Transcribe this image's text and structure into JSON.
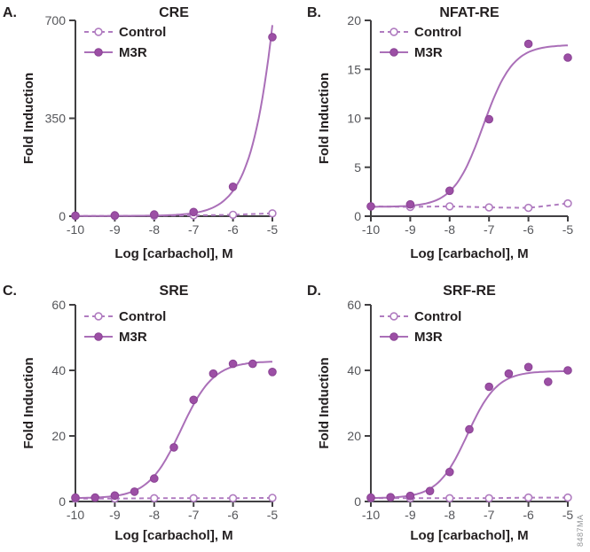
{
  "figure": {
    "watermark": "8487MA",
    "colors": {
      "curve_line": "#aa6fb8",
      "marker_fill": "#9c4fa5",
      "marker_edge": "#8a4394",
      "control_line": "#b07cc0",
      "open_marker_fill": "#ffffff",
      "axis": "#414042",
      "tick_label": "#55565a",
      "text": "#231f20",
      "watermark_gray": "#929497"
    },
    "legend": {
      "control_label": "Control",
      "m3r_label": "M3R"
    }
  },
  "chart_data": [
    {
      "id": "cre",
      "letter": "A.",
      "title": "CRE",
      "type": "scatter",
      "xlabel": "Log [carbachol], M",
      "ylabel": "Fold Induction",
      "xlim": [
        -10,
        -5
      ],
      "xticks": [
        -10,
        -9,
        -8,
        -7,
        -6,
        -5
      ],
      "ylim": [
        0,
        700
      ],
      "yticks": [
        0,
        350,
        700
      ],
      "legend_position": "top-left",
      "grid": false,
      "series": [
        {
          "name": "Control",
          "style": "dashed-open",
          "x": [
            -10,
            -9,
            -8,
            -7,
            -6,
            -5
          ],
          "y": [
            1,
            1,
            2,
            3,
            5,
            10
          ]
        },
        {
          "name": "M3R",
          "style": "solid-filled",
          "x": [
            -10,
            -9,
            -8,
            -7,
            -6,
            -5
          ],
          "y": [
            2,
            3,
            6,
            15,
            105,
            640
          ],
          "fit": {
            "bottom": 1,
            "top": 4200,
            "logec50": -4.25,
            "hill": 0.95
          }
        }
      ]
    },
    {
      "id": "nfat-re",
      "letter": "B.",
      "title": "NFAT-RE",
      "type": "scatter",
      "xlabel": "Log [carbachol], M",
      "ylabel": "Fold Induction",
      "xlim": [
        -10,
        -5
      ],
      "xticks": [
        -10,
        -9,
        -8,
        -7,
        -6,
        -5
      ],
      "ylim": [
        0,
        20
      ],
      "yticks": [
        0,
        5,
        10,
        15,
        20
      ],
      "legend_position": "top-left",
      "grid": false,
      "series": [
        {
          "name": "Control",
          "style": "dashed-open",
          "x": [
            -10,
            -9,
            -8,
            -7,
            -6,
            -5
          ],
          "y": [
            1.0,
            0.95,
            1.0,
            0.9,
            0.85,
            1.3
          ]
        },
        {
          "name": "M3R",
          "style": "solid-filled",
          "x": [
            -10,
            -9,
            -8,
            -7,
            -6,
            -5
          ],
          "y": [
            1.0,
            1.2,
            2.6,
            9.9,
            17.6,
            16.2
          ],
          "fit": {
            "bottom": 0.95,
            "top": 17.5,
            "logec50": -7.15,
            "hill": 1.15
          }
        }
      ]
    },
    {
      "id": "sre",
      "letter": "C.",
      "title": "SRE",
      "type": "scatter",
      "xlabel": "Log [carbachol], M",
      "ylabel": "Fold Induction",
      "xlim": [
        -10,
        -5
      ],
      "xticks": [
        -10,
        -9,
        -8,
        -7,
        -6,
        -5
      ],
      "ylim": [
        0,
        60
      ],
      "yticks": [
        0,
        20,
        40,
        60
      ],
      "legend_position": "top-left",
      "grid": false,
      "series": [
        {
          "name": "Control",
          "style": "dashed-open",
          "x": [
            -10,
            -9,
            -8,
            -7,
            -6,
            -5
          ],
          "y": [
            0.9,
            0.9,
            1.0,
            1.0,
            1.0,
            1.1
          ]
        },
        {
          "name": "M3R",
          "style": "solid-filled",
          "x": [
            -10,
            -9.5,
            -9,
            -8.5,
            -8,
            -7.5,
            -7,
            -6.5,
            -6,
            -5.5,
            -5
          ],
          "y": [
            1.2,
            1.2,
            1.8,
            3.0,
            7.0,
            16.5,
            31,
            39,
            42,
            42,
            39.5
          ],
          "fit": {
            "bottom": 1.0,
            "top": 42.8,
            "logec50": -7.32,
            "hill": 1.05
          }
        }
      ]
    },
    {
      "id": "srf-re",
      "letter": "D.",
      "title": "SRF-RE",
      "type": "scatter",
      "xlabel": "Log [carbachol], M",
      "ylabel": "Fold Induction",
      "xlim": [
        -10,
        -5
      ],
      "xticks": [
        -10,
        -9,
        -8,
        -7,
        -6,
        -5
      ],
      "ylim": [
        0,
        60
      ],
      "yticks": [
        0,
        20,
        40,
        60
      ],
      "legend_position": "top-left",
      "grid": false,
      "series": [
        {
          "name": "Control",
          "style": "dashed-open",
          "x": [
            -10,
            -9,
            -8,
            -7,
            -6,
            -5
          ],
          "y": [
            1.0,
            1.0,
            1.0,
            1.0,
            1.2,
            1.2
          ]
        },
        {
          "name": "M3R",
          "style": "solid-filled",
          "x": [
            -10,
            -9.5,
            -9,
            -8.5,
            -8,
            -7.5,
            -7,
            -6.5,
            -6,
            -5.5,
            -5
          ],
          "y": [
            1.2,
            1.3,
            1.7,
            3.2,
            9.0,
            22,
            35,
            39,
            41,
            36.5,
            40
          ],
          "fit": {
            "bottom": 1.0,
            "top": 39.8,
            "logec50": -7.55,
            "hill": 1.15
          }
        }
      ]
    }
  ]
}
